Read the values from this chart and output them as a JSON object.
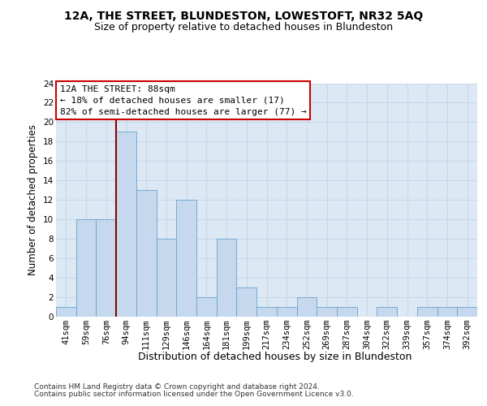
{
  "title": "12A, THE STREET, BLUNDESTON, LOWESTOFT, NR32 5AQ",
  "subtitle": "Size of property relative to detached houses in Blundeston",
  "xlabel": "Distribution of detached houses by size in Blundeston",
  "ylabel": "Number of detached properties",
  "categories": [
    "41sqm",
    "59sqm",
    "76sqm",
    "94sqm",
    "111sqm",
    "129sqm",
    "146sqm",
    "164sqm",
    "181sqm",
    "199sqm",
    "217sqm",
    "234sqm",
    "252sqm",
    "269sqm",
    "287sqm",
    "304sqm",
    "322sqm",
    "339sqm",
    "357sqm",
    "374sqm",
    "392sqm"
  ],
  "values": [
    1,
    10,
    10,
    19,
    13,
    8,
    12,
    2,
    8,
    3,
    1,
    1,
    2,
    1,
    1,
    0,
    1,
    0,
    1,
    1,
    1
  ],
  "bar_color": "#c5d8ee",
  "bar_edge_color": "#6ba3cc",
  "vline_color": "#8b0000",
  "vline_position": 2.5,
  "annotation_text_line1": "12A THE STREET: 88sqm",
  "annotation_text_line2": "← 18% of detached houses are smaller (17)",
  "annotation_text_line3": "82% of semi-detached houses are larger (77) →",
  "annotation_box_facecolor": "white",
  "annotation_box_edgecolor": "#cc0000",
  "ylim_max": 24,
  "yticks": [
    0,
    2,
    4,
    6,
    8,
    10,
    12,
    14,
    16,
    18,
    20,
    22,
    24
  ],
  "bg_color": "#dce9f5",
  "grid_color": "#c8d8e8",
  "footer1": "Contains HM Land Registry data © Crown copyright and database right 2024.",
  "footer2": "Contains public sector information licensed under the Open Government Licence v3.0.",
  "title_fontsize": 10,
  "subtitle_fontsize": 9,
  "ylabel_fontsize": 8.5,
  "xlabel_fontsize": 9,
  "tick_fontsize": 7.5,
  "annot_fontsize": 8,
  "footer_fontsize": 6.5
}
